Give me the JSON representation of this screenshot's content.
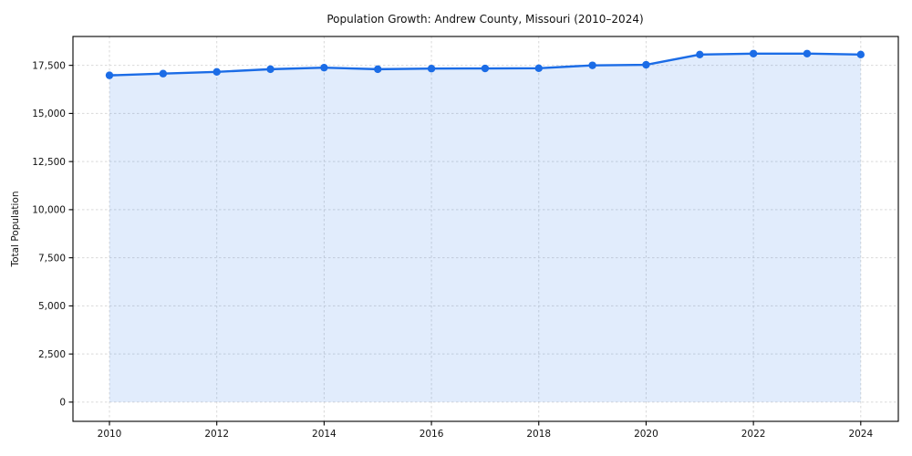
{
  "figure": {
    "title": "Population Growth: Andrew County, Missouri (2010–2024)",
    "ylabel": "Total Population",
    "xlabel": ""
  },
  "chart_data": {
    "type": "line",
    "title": "Population Growth: Andrew County, Missouri (2010–2024)",
    "xlabel": "",
    "ylabel": "Total Population",
    "x": [
      2010,
      2011,
      2012,
      2013,
      2014,
      2015,
      2016,
      2017,
      2018,
      2019,
      2020,
      2021,
      2022,
      2023,
      2024
    ],
    "series": [
      {
        "name": "Total Population",
        "values": [
          16980,
          17070,
          17160,
          17300,
          17380,
          17300,
          17330,
          17340,
          17350,
          17500,
          17530,
          18060,
          18110,
          18110,
          18060
        ]
      }
    ],
    "xticks": [
      2010,
      2012,
      2014,
      2016,
      2018,
      2020,
      2022,
      2024
    ],
    "yticks": [
      0,
      2500,
      5000,
      7500,
      10000,
      12500,
      15000,
      17500
    ],
    "xlim": [
      2009.32,
      2024.7
    ],
    "ylim": [
      -1000,
      19000
    ],
    "grid": true,
    "grid_style": "dashed",
    "legend": false,
    "marker": "circle",
    "colors": {
      "line": "#1b6ce6",
      "marker": "#1b6ce6",
      "fill": "#1b6ce6",
      "fill_opacity": 0.13,
      "grid": "#d9d9d9",
      "spine": "#000000",
      "text": "#111111"
    }
  }
}
